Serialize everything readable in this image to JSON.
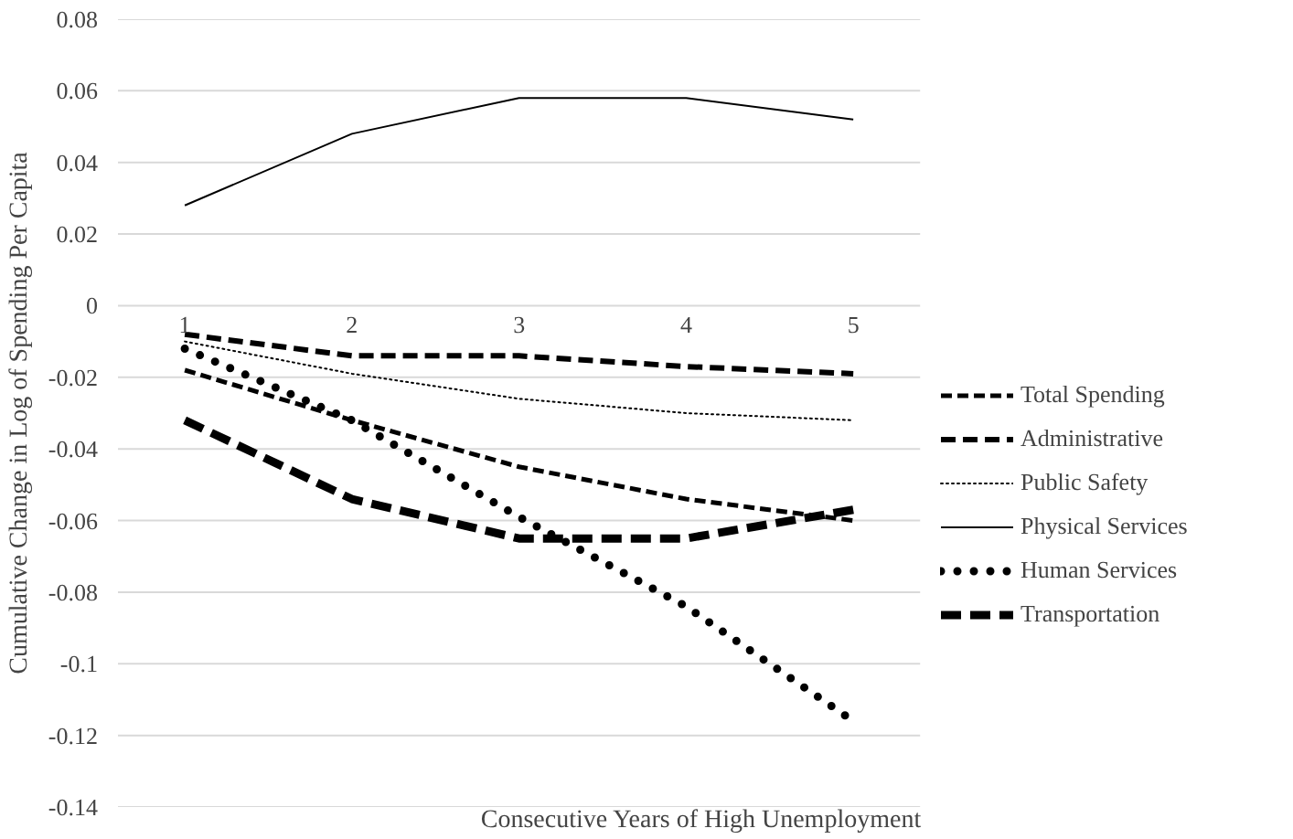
{
  "chart_data": {
    "type": "line",
    "xlabel": "Consecutive Years of High Unemployment",
    "ylabel": "Cumulative Change in Log of Spending Per Capita",
    "categories": [
      "1",
      "2",
      "3",
      "4",
      "5"
    ],
    "ylim": [
      -0.14,
      0.08
    ],
    "yticks": [
      -0.14,
      -0.12,
      -0.1,
      -0.08,
      -0.06,
      -0.04,
      -0.02,
      0,
      0.02,
      0.04,
      0.06,
      0.08
    ],
    "grid": "y",
    "legend": "right",
    "marker": "none",
    "series": [
      {
        "name": "Total Spending",
        "color": "#000000",
        "line_style": "dashed",
        "values": [
          -0.018,
          -0.032,
          -0.045,
          -0.054,
          -0.06
        ]
      },
      {
        "name": "Administrative",
        "color": "#000000",
        "line_style": "dashed",
        "values": [
          -0.008,
          -0.014,
          -0.014,
          -0.017,
          -0.019
        ]
      },
      {
        "name": "Public Safety",
        "color": "#000000",
        "line_style": "dotted",
        "values": [
          -0.01,
          -0.019,
          -0.026,
          -0.03,
          -0.032
        ]
      },
      {
        "name": "Physical Services",
        "color": "#000000",
        "line_style": "solid",
        "values": [
          0.028,
          0.048,
          0.058,
          0.058,
          0.052
        ]
      },
      {
        "name": "Human Services",
        "color": "#000000",
        "line_style": "dotted",
        "values": [
          -0.012,
          -0.032,
          -0.059,
          -0.084,
          -0.116
        ]
      },
      {
        "name": "Transportation",
        "color": "#000000",
        "line_style": "dashed",
        "values": [
          -0.032,
          -0.054,
          -0.065,
          -0.065,
          -0.057
        ]
      }
    ]
  }
}
